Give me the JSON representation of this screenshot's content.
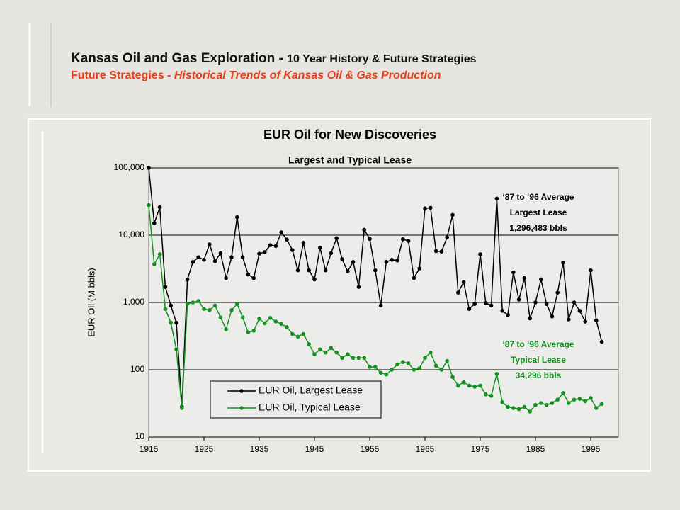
{
  "header": {
    "title": "Kansas Oil and Gas Exploration - ",
    "title_suffix": "10 Year History & Future Strategies",
    "subtitle": "Future Strategies - ",
    "subtitle_suffix": "Historical Trends of Kansas Oil & Gas Production"
  },
  "chart_data": {
    "type": "line",
    "title": "EUR Oil for New Discoveries",
    "subtitle": "Largest and Typical Lease",
    "y_label": "EUR Oil (M bbls)",
    "log_scale": true,
    "grid": true,
    "legend": "bottom-left",
    "xlim": [
      1915,
      2000
    ],
    "xticks": [
      1915,
      1925,
      1935,
      1945,
      1955,
      1965,
      1975,
      1985,
      1995
    ],
    "ylim": [
      10,
      100000
    ],
    "yticks": [
      {
        "value": 100000,
        "label": "100,000"
      },
      {
        "value": 10000,
        "label": "10,000"
      },
      {
        "value": 1000,
        "label": "1,000"
      },
      100,
      10
    ],
    "x": [
      1915,
      1916,
      1917,
      1918,
      1919,
      1920,
      1921,
      1922,
      1923,
      1924,
      1925,
      1926,
      1927,
      1928,
      1929,
      1930,
      1931,
      1932,
      1933,
      1934,
      1935,
      1936,
      1937,
      1938,
      1939,
      1940,
      1941,
      1942,
      1943,
      1944,
      1945,
      1946,
      1947,
      1948,
      1949,
      1950,
      1951,
      1952,
      1953,
      1954,
      1955,
      1956,
      1957,
      1958,
      1959,
      1960,
      1961,
      1962,
      1963,
      1964,
      1965,
      1966,
      1967,
      1968,
      1969,
      1970,
      1971,
      1972,
      1973,
      1974,
      1975,
      1976,
      1977,
      1978,
      1979,
      1980,
      1981,
      1982,
      1983,
      1984,
      1985,
      1986,
      1987,
      1988,
      1989,
      1990,
      1991,
      1992,
      1993,
      1994,
      1995,
      1996,
      1997
    ],
    "series": [
      {
        "name": "EUR Oil, Largest Lease",
        "color": "#000000",
        "values": [
          100000,
          15000,
          26000,
          1700,
          900,
          500,
          28,
          2200,
          4000,
          4700,
          4300,
          7300,
          4100,
          5400,
          2300,
          4700,
          18500,
          4700,
          2600,
          2300,
          5300,
          5600,
          7100,
          6900,
          11000,
          8600,
          6000,
          3000,
          7700,
          3000,
          2200,
          6500,
          3000,
          5400,
          9000,
          4400,
          2900,
          4000,
          1700,
          12000,
          8800,
          3000,
          900,
          4000,
          4300,
          4200,
          8700,
          8200,
          2300,
          3200,
          25000,
          25500,
          5800,
          5700,
          9300,
          20000,
          1400,
          2000,
          800,
          950,
          5200,
          980,
          900,
          35000,
          750,
          650,
          2800,
          1100,
          2300,
          580,
          1000,
          2200,
          950,
          620,
          1400,
          3900,
          560,
          1000,
          750,
          520,
          3000,
          540,
          260
        ]
      },
      {
        "name": "EUR Oil, Typical Lease",
        "color": "#13911f",
        "values": [
          28000,
          3700,
          5200,
          800,
          500,
          200,
          27,
          950,
          1000,
          1050,
          800,
          770,
          900,
          600,
          400,
          770,
          950,
          600,
          360,
          380,
          570,
          490,
          590,
          520,
          480,
          430,
          340,
          310,
          340,
          240,
          170,
          200,
          180,
          210,
          180,
          150,
          170,
          150,
          150,
          150,
          110,
          110,
          90,
          85,
          100,
          120,
          130,
          125,
          100,
          105,
          150,
          180,
          115,
          100,
          135,
          78,
          58,
          65,
          58,
          56,
          58,
          43,
          41,
          87,
          33,
          28,
          27,
          26,
          28,
          24,
          30,
          32,
          30,
          32,
          36,
          45,
          32,
          36,
          37,
          34,
          38,
          27,
          31
        ]
      }
    ],
    "annotations": [
      {
        "lines": [
          "‘87 to ‘96 Average",
          "Largest Lease",
          "1,296,483 bbls"
        ],
        "color": "#000000"
      },
      {
        "lines": [
          "‘87 to ‘96 Average",
          "Typical Lease",
          "34,296 bbls"
        ],
        "color": "#13911f"
      }
    ]
  }
}
